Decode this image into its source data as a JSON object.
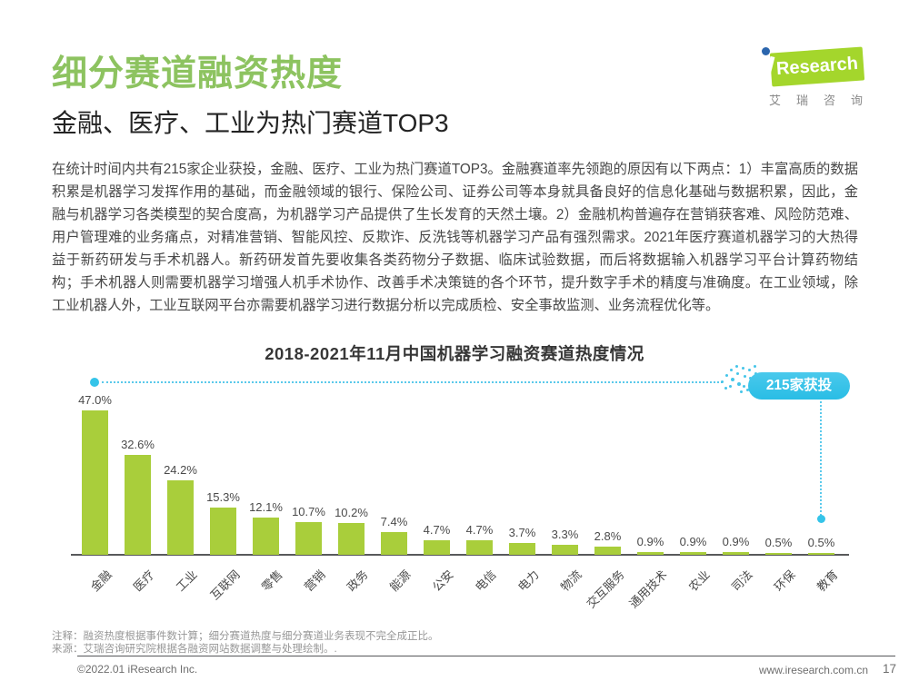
{
  "header": {
    "title": "细分赛道融资热度",
    "subtitle": "金融、医疗、工业为热门赛道TOP3",
    "logo": {
      "name": "iResearch",
      "text": "Research",
      "caption": "艾瑞咨询"
    }
  },
  "body_text": "在统计时间内共有215家企业获投，金融、医疗、工业为热门赛道TOP3。金融赛道率先领跑的原因有以下两点：1）丰富高质的数据积累是机器学习发挥作用的基础，而金融领域的银行、保险公司、证券公司等本身就具备良好的信息化基础与数据积累，因此，金融与机器学习各类模型的契合度高，为机器学习产品提供了生长发育的天然土壤。2）金融机构普遍存在营销获客难、风险防范难、用户管理难的业务痛点，对精准营销、智能风控、反欺诈、反洗钱等机器学习产品有强烈需求。2021年医疗赛道机器学习的大热得益于新药研发与手术机器人。新药研发首先要收集各类药物分子数据、临床试验数据，而后将数据输入机器学习平台计算药物结构；手术机器人则需要机器学习增强人机手术协作、改善手术决策链的各个环节，提升数字手术的精度与准确度。在工业领域，除工业机器人外，工业互联网平台亦需要机器学习进行数据分析以完成质检、安全事故监测、业务流程优化等。",
  "chart_data": {
    "type": "bar",
    "title": "2018-2021年11月中国机器学习融资赛道热度情况",
    "categories": [
      "金融",
      "医疗",
      "工业",
      "互联网",
      "零售",
      "营销",
      "政务",
      "能源",
      "公安",
      "电信",
      "电力",
      "物流",
      "交互服务",
      "通用技术",
      "农业",
      "司法",
      "环保",
      "教育"
    ],
    "values": [
      47.0,
      32.6,
      24.2,
      15.3,
      12.1,
      10.7,
      10.2,
      7.4,
      4.7,
      4.7,
      3.7,
      3.3,
      2.8,
      0.9,
      0.9,
      0.9,
      0.5,
      0.5
    ],
    "unit": "%",
    "xlabel": "",
    "ylabel": "",
    "ylim": [
      0,
      50
    ],
    "grid": false,
    "legend": "none",
    "bar_color": "#a9ce3b",
    "callout": {
      "label": "215家获投",
      "color": "#35c4e9"
    }
  },
  "notes": {
    "note": "注释：融资热度根据事件数计算；细分赛道热度与细分赛道业务表现不完全成正比。",
    "source": "来源：艾瑞咨询研究院根据各融资网站数据调整与处理绘制。."
  },
  "footer": {
    "copyright": "©2022.01 iResearch Inc.",
    "website": "www.iresearch.com.cn",
    "page_number": "17"
  },
  "colors": {
    "accent_green": "#8dc360",
    "bar_green": "#a9ce3b",
    "callout_cyan": "#35c4e9",
    "logo_green": "#a4d62c",
    "logo_dot_blue": "#2b65ad",
    "text_dark": "#484848"
  }
}
